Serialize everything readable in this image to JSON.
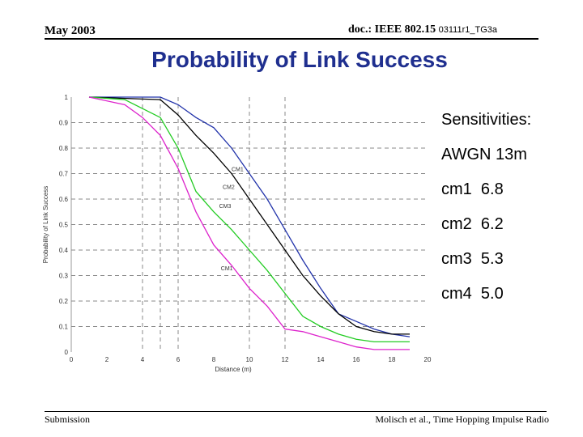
{
  "header": {
    "date": "May 2003",
    "doc_prefix": "doc.: IEEE 802.15 ",
    "doc_number": "03111r1_TG3a"
  },
  "slide": {
    "title": "Probability of Link Success"
  },
  "sensitivities": {
    "heading": "Sensitivities:",
    "items": [
      "AWGN 13m",
      "cm1  6.8",
      "cm2  6.2",
      "cm3  5.3",
      "cm4  5.0"
    ]
  },
  "footer": {
    "left": "Submission",
    "right": "Molisch et al., Time  Hopping Impulse Radio"
  },
  "chart_data": {
    "type": "line",
    "xlabel": "Distance (m)",
    "ylabel": "Probability of Link Success",
    "xlim": [
      0,
      20
    ],
    "ylim": [
      0,
      1
    ],
    "xticks": [
      0,
      2,
      4,
      6,
      8,
      10,
      12,
      14,
      16,
      18,
      20
    ],
    "yticks": [
      0,
      0.1,
      0.2,
      0.3,
      0.4,
      0.5,
      0.6,
      0.7,
      0.8,
      0.9,
      1
    ],
    "grid": "dashed",
    "vlines": [
      4,
      5,
      6,
      10,
      12
    ],
    "hlines": [
      0.5
    ],
    "colors": {
      "blue": "#2233aa",
      "black": "#000000",
      "green": "#22cc22",
      "magenta": "#dd22cc",
      "grid": "#888888"
    },
    "series": [
      {
        "color": "blue",
        "x": [
          1,
          5,
          6,
          7,
          8,
          9,
          10,
          11,
          12,
          13,
          14,
          15,
          16,
          17,
          18,
          19
        ],
        "y": [
          1,
          1,
          0.97,
          0.92,
          0.88,
          0.8,
          0.7,
          0.6,
          0.48,
          0.36,
          0.25,
          0.15,
          0.12,
          0.09,
          0.07,
          0.06
        ]
      },
      {
        "color": "black",
        "x": [
          1,
          5,
          6,
          7,
          8,
          9,
          10,
          11,
          12,
          13,
          14,
          15,
          16,
          17,
          18,
          19
        ],
        "y": [
          1,
          0.99,
          0.93,
          0.85,
          0.78,
          0.7,
          0.6,
          0.5,
          0.4,
          0.3,
          0.22,
          0.15,
          0.1,
          0.08,
          0.07,
          0.07
        ]
      },
      {
        "color": "green",
        "x": [
          1,
          3,
          5,
          6,
          7,
          8,
          9,
          10,
          11,
          12,
          13,
          14,
          15,
          16,
          17,
          18,
          19
        ],
        "y": [
          1,
          0.99,
          0.92,
          0.8,
          0.63,
          0.55,
          0.48,
          0.4,
          0.32,
          0.23,
          0.14,
          0.1,
          0.07,
          0.05,
          0.04,
          0.04,
          0.04
        ]
      },
      {
        "color": "magenta",
        "x": [
          1,
          3,
          4,
          5,
          6,
          7,
          8,
          9,
          10,
          11,
          12,
          13,
          14,
          15,
          16,
          17,
          18,
          19
        ],
        "y": [
          1,
          0.97,
          0.92,
          0.85,
          0.72,
          0.55,
          0.42,
          0.34,
          0.25,
          0.18,
          0.09,
          0.08,
          0.06,
          0.04,
          0.02,
          0.01,
          0.01,
          0.01
        ]
      }
    ],
    "annotations": [
      {
        "text": "CM1",
        "x": 9.0,
        "y": 0.71
      },
      {
        "text": "CM2",
        "x": 8.5,
        "y": 0.64
      },
      {
        "text": "CM3",
        "x": 8.3,
        "y": 0.565
      },
      {
        "text": "CM1",
        "x": 8.4,
        "y": 0.32
      }
    ]
  }
}
